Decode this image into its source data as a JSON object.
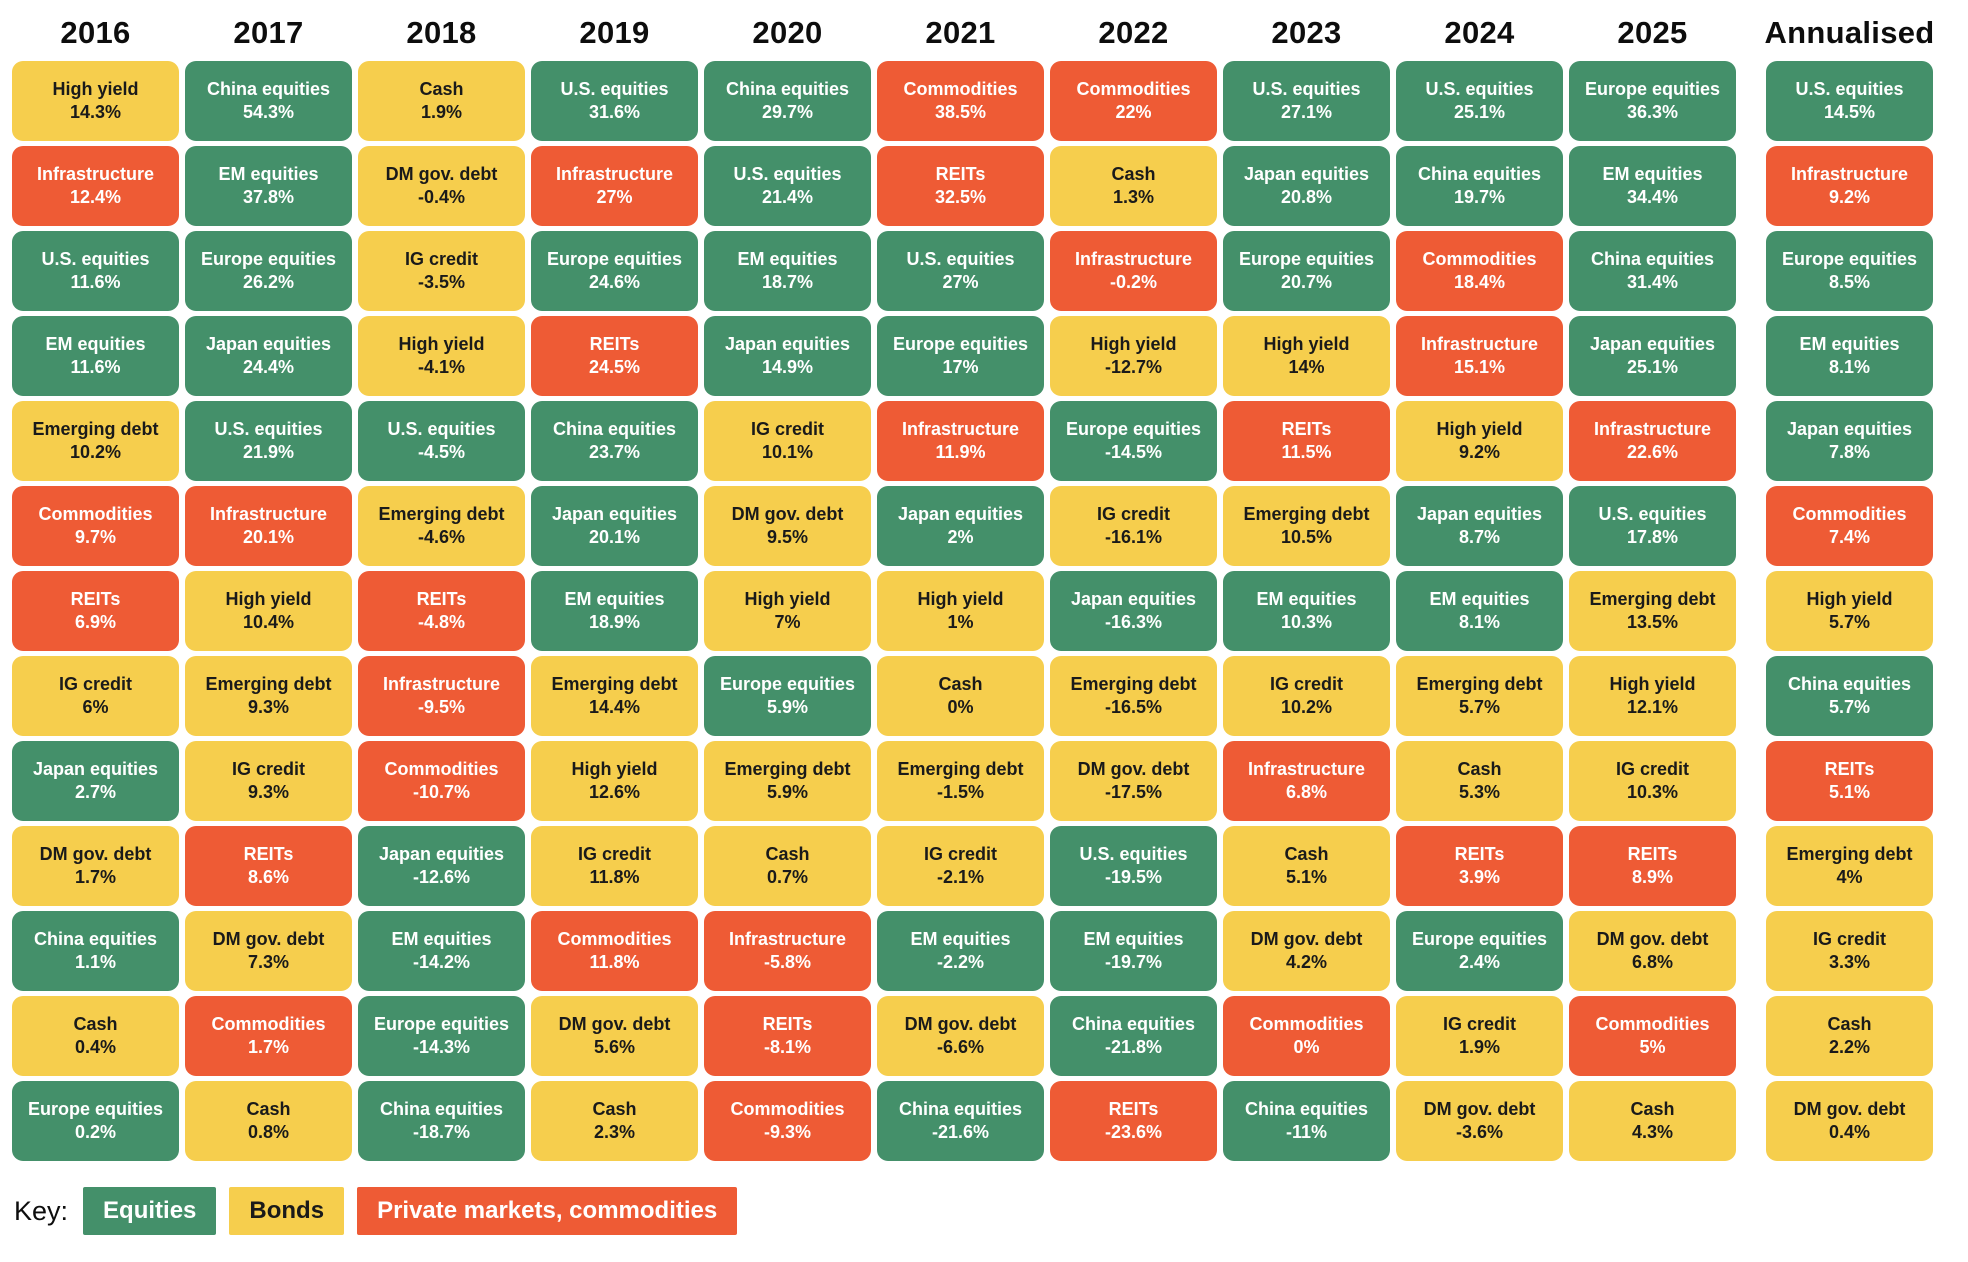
{
  "colors": {
    "equities": {
      "bg": "#44906A",
      "text": "#FFFFFF"
    },
    "bonds": {
      "bg": "#F6CE4D",
      "text": "#1A1A1A"
    },
    "private": {
      "bg": "#EE5B35",
      "text": "#FFFFFF"
    }
  },
  "chart_data": {
    "type": "table",
    "legend": {
      "label": "Key:",
      "items": [
        {
          "label": "Equities",
          "type": "equities"
        },
        {
          "label": "Bonds",
          "type": "bonds"
        },
        {
          "label": "Private markets, commodities",
          "type": "private"
        }
      ]
    },
    "columns": [
      {
        "header": "2016",
        "cells": [
          {
            "name": "High yield",
            "value": "14.3%",
            "type": "bonds"
          },
          {
            "name": "Infrastructure",
            "value": "12.4%",
            "type": "private"
          },
          {
            "name": "U.S. equities",
            "value": "11.6%",
            "type": "equities"
          },
          {
            "name": "EM equities",
            "value": "11.6%",
            "type": "equities"
          },
          {
            "name": "Emerging debt",
            "value": "10.2%",
            "type": "bonds"
          },
          {
            "name": "Commodities",
            "value": "9.7%",
            "type": "private"
          },
          {
            "name": "REITs",
            "value": "6.9%",
            "type": "private"
          },
          {
            "name": "IG credit",
            "value": "6%",
            "type": "bonds"
          },
          {
            "name": "Japan equities",
            "value": "2.7%",
            "type": "equities"
          },
          {
            "name": "DM gov. debt",
            "value": "1.7%",
            "type": "bonds"
          },
          {
            "name": "China equities",
            "value": "1.1%",
            "type": "equities"
          },
          {
            "name": "Cash",
            "value": "0.4%",
            "type": "bonds"
          },
          {
            "name": "Europe equities",
            "value": "0.2%",
            "type": "equities"
          }
        ]
      },
      {
        "header": "2017",
        "cells": [
          {
            "name": "China equities",
            "value": "54.3%",
            "type": "equities"
          },
          {
            "name": "EM equities",
            "value": "37.8%",
            "type": "equities"
          },
          {
            "name": "Europe equities",
            "value": "26.2%",
            "type": "equities"
          },
          {
            "name": "Japan equities",
            "value": "24.4%",
            "type": "equities"
          },
          {
            "name": "U.S. equities",
            "value": "21.9%",
            "type": "equities"
          },
          {
            "name": "Infrastructure",
            "value": "20.1%",
            "type": "private"
          },
          {
            "name": "High yield",
            "value": "10.4%",
            "type": "bonds"
          },
          {
            "name": "Emerging debt",
            "value": "9.3%",
            "type": "bonds"
          },
          {
            "name": "IG credit",
            "value": "9.3%",
            "type": "bonds"
          },
          {
            "name": "REITs",
            "value": "8.6%",
            "type": "private"
          },
          {
            "name": "DM gov. debt",
            "value": "7.3%",
            "type": "bonds"
          },
          {
            "name": "Commodities",
            "value": "1.7%",
            "type": "private"
          },
          {
            "name": "Cash",
            "value": "0.8%",
            "type": "bonds"
          }
        ]
      },
      {
        "header": "2018",
        "cells": [
          {
            "name": "Cash",
            "value": "1.9%",
            "type": "bonds"
          },
          {
            "name": "DM gov. debt",
            "value": "-0.4%",
            "type": "bonds"
          },
          {
            "name": "IG credit",
            "value": "-3.5%",
            "type": "bonds"
          },
          {
            "name": "High yield",
            "value": "-4.1%",
            "type": "bonds"
          },
          {
            "name": "U.S. equities",
            "value": "-4.5%",
            "type": "equities"
          },
          {
            "name": "Emerging debt",
            "value": "-4.6%",
            "type": "bonds"
          },
          {
            "name": "REITs",
            "value": "-4.8%",
            "type": "private"
          },
          {
            "name": "Infrastructure",
            "value": "-9.5%",
            "type": "private"
          },
          {
            "name": "Commodities",
            "value": "-10.7%",
            "type": "private"
          },
          {
            "name": "Japan equities",
            "value": "-12.6%",
            "type": "equities"
          },
          {
            "name": "EM equities",
            "value": "-14.2%",
            "type": "equities"
          },
          {
            "name": "Europe equities",
            "value": "-14.3%",
            "type": "equities"
          },
          {
            "name": "China equities",
            "value": "-18.7%",
            "type": "equities"
          }
        ]
      },
      {
        "header": "2019",
        "cells": [
          {
            "name": "U.S. equities",
            "value": "31.6%",
            "type": "equities"
          },
          {
            "name": "Infrastructure",
            "value": "27%",
            "type": "private"
          },
          {
            "name": "Europe equities",
            "value": "24.6%",
            "type": "equities"
          },
          {
            "name": "REITs",
            "value": "24.5%",
            "type": "private"
          },
          {
            "name": "China equities",
            "value": "23.7%",
            "type": "equities"
          },
          {
            "name": "Japan equities",
            "value": "20.1%",
            "type": "equities"
          },
          {
            "name": "EM equities",
            "value": "18.9%",
            "type": "equities"
          },
          {
            "name": "Emerging debt",
            "value": "14.4%",
            "type": "bonds"
          },
          {
            "name": "High yield",
            "value": "12.6%",
            "type": "bonds"
          },
          {
            "name": "IG credit",
            "value": "11.8%",
            "type": "bonds"
          },
          {
            "name": "Commodities",
            "value": "11.8%",
            "type": "private"
          },
          {
            "name": "DM gov. debt",
            "value": "5.6%",
            "type": "bonds"
          },
          {
            "name": "Cash",
            "value": "2.3%",
            "type": "bonds"
          }
        ]
      },
      {
        "header": "2020",
        "cells": [
          {
            "name": "China equities",
            "value": "29.7%",
            "type": "equities"
          },
          {
            "name": "U.S. equities",
            "value": "21.4%",
            "type": "equities"
          },
          {
            "name": "EM equities",
            "value": "18.7%",
            "type": "equities"
          },
          {
            "name": "Japan equities",
            "value": "14.9%",
            "type": "equities"
          },
          {
            "name": "IG credit",
            "value": "10.1%",
            "type": "bonds"
          },
          {
            "name": "DM gov. debt",
            "value": "9.5%",
            "type": "bonds"
          },
          {
            "name": "High yield",
            "value": "7%",
            "type": "bonds"
          },
          {
            "name": "Europe equities",
            "value": "5.9%",
            "type": "equities"
          },
          {
            "name": "Emerging debt",
            "value": "5.9%",
            "type": "bonds"
          },
          {
            "name": "Cash",
            "value": "0.7%",
            "type": "bonds"
          },
          {
            "name": "Infrastructure",
            "value": "-5.8%",
            "type": "private"
          },
          {
            "name": "REITs",
            "value": "-8.1%",
            "type": "private"
          },
          {
            "name": "Commodities",
            "value": "-9.3%",
            "type": "private"
          }
        ]
      },
      {
        "header": "2021",
        "cells": [
          {
            "name": "Commodities",
            "value": "38.5%",
            "type": "private"
          },
          {
            "name": "REITs",
            "value": "32.5%",
            "type": "private"
          },
          {
            "name": "U.S. equities",
            "value": "27%",
            "type": "equities"
          },
          {
            "name": "Europe equities",
            "value": "17%",
            "type": "equities"
          },
          {
            "name": "Infrastructure",
            "value": "11.9%",
            "type": "private"
          },
          {
            "name": "Japan equities",
            "value": "2%",
            "type": "equities"
          },
          {
            "name": "High yield",
            "value": "1%",
            "type": "bonds"
          },
          {
            "name": "Cash",
            "value": "0%",
            "type": "bonds"
          },
          {
            "name": "Emerging debt",
            "value": "-1.5%",
            "type": "bonds"
          },
          {
            "name": "IG credit",
            "value": "-2.1%",
            "type": "bonds"
          },
          {
            "name": "EM equities",
            "value": "-2.2%",
            "type": "equities"
          },
          {
            "name": "DM gov. debt",
            "value": "-6.6%",
            "type": "bonds"
          },
          {
            "name": "China equities",
            "value": "-21.6%",
            "type": "equities"
          }
        ]
      },
      {
        "header": "2022",
        "cells": [
          {
            "name": "Commodities",
            "value": "22%",
            "type": "private"
          },
          {
            "name": "Cash",
            "value": "1.3%",
            "type": "bonds"
          },
          {
            "name": "Infrastructure",
            "value": "-0.2%",
            "type": "private"
          },
          {
            "name": "High yield",
            "value": "-12.7%",
            "type": "bonds"
          },
          {
            "name": "Europe equities",
            "value": "-14.5%",
            "type": "equities"
          },
          {
            "name": "IG credit",
            "value": "-16.1%",
            "type": "bonds"
          },
          {
            "name": "Japan equities",
            "value": "-16.3%",
            "type": "equities"
          },
          {
            "name": "Emerging debt",
            "value": "-16.5%",
            "type": "bonds"
          },
          {
            "name": "DM gov. debt",
            "value": "-17.5%",
            "type": "bonds"
          },
          {
            "name": "U.S. equities",
            "value": "-19.5%",
            "type": "equities"
          },
          {
            "name": "EM equities",
            "value": "-19.7%",
            "type": "equities"
          },
          {
            "name": "China equities",
            "value": "-21.8%",
            "type": "equities"
          },
          {
            "name": "REITs",
            "value": "-23.6%",
            "type": "private"
          }
        ]
      },
      {
        "header": "2023",
        "cells": [
          {
            "name": "U.S. equities",
            "value": "27.1%",
            "type": "equities"
          },
          {
            "name": "Japan equities",
            "value": "20.8%",
            "type": "equities"
          },
          {
            "name": "Europe equities",
            "value": "20.7%",
            "type": "equities"
          },
          {
            "name": "High yield",
            "value": "14%",
            "type": "bonds"
          },
          {
            "name": "REITs",
            "value": "11.5%",
            "type": "private"
          },
          {
            "name": "Emerging debt",
            "value": "10.5%",
            "type": "bonds"
          },
          {
            "name": "EM equities",
            "value": "10.3%",
            "type": "equities"
          },
          {
            "name": "IG credit",
            "value": "10.2%",
            "type": "bonds"
          },
          {
            "name": "Infrastructure",
            "value": "6.8%",
            "type": "private"
          },
          {
            "name": "Cash",
            "value": "5.1%",
            "type": "bonds"
          },
          {
            "name": "DM gov. debt",
            "value": "4.2%",
            "type": "bonds"
          },
          {
            "name": "Commodities",
            "value": "0%",
            "type": "private"
          },
          {
            "name": "China equities",
            "value": "-11%",
            "type": "equities"
          }
        ]
      },
      {
        "header": "2024",
        "cells": [
          {
            "name": "U.S. equities",
            "value": "25.1%",
            "type": "equities"
          },
          {
            "name": "China equities",
            "value": "19.7%",
            "type": "equities"
          },
          {
            "name": "Commodities",
            "value": "18.4%",
            "type": "private"
          },
          {
            "name": "Infrastructure",
            "value": "15.1%",
            "type": "private"
          },
          {
            "name": "High yield",
            "value": "9.2%",
            "type": "bonds"
          },
          {
            "name": "Japan equities",
            "value": "8.7%",
            "type": "equities"
          },
          {
            "name": "EM equities",
            "value": "8.1%",
            "type": "equities"
          },
          {
            "name": "Emerging debt",
            "value": "5.7%",
            "type": "bonds"
          },
          {
            "name": "Cash",
            "value": "5.3%",
            "type": "bonds"
          },
          {
            "name": "REITs",
            "value": "3.9%",
            "type": "private"
          },
          {
            "name": "Europe equities",
            "value": "2.4%",
            "type": "equities"
          },
          {
            "name": "IG credit",
            "value": "1.9%",
            "type": "bonds"
          },
          {
            "name": "DM gov. debt",
            "value": "-3.6%",
            "type": "bonds"
          }
        ]
      },
      {
        "header": "2025",
        "cells": [
          {
            "name": "Europe equities",
            "value": "36.3%",
            "type": "equities"
          },
          {
            "name": "EM equities",
            "value": "34.4%",
            "type": "equities"
          },
          {
            "name": "China equities",
            "value": "31.4%",
            "type": "equities"
          },
          {
            "name": "Japan equities",
            "value": "25.1%",
            "type": "equities"
          },
          {
            "name": "Infrastructure",
            "value": "22.6%",
            "type": "private"
          },
          {
            "name": "U.S. equities",
            "value": "17.8%",
            "type": "equities"
          },
          {
            "name": "Emerging debt",
            "value": "13.5%",
            "type": "bonds"
          },
          {
            "name": "High yield",
            "value": "12.1%",
            "type": "bonds"
          },
          {
            "name": "IG credit",
            "value": "10.3%",
            "type": "bonds"
          },
          {
            "name": "REITs",
            "value": "8.9%",
            "type": "private"
          },
          {
            "name": "DM gov. debt",
            "value": "6.8%",
            "type": "bonds"
          },
          {
            "name": "Commodities",
            "value": "5%",
            "type": "private"
          },
          {
            "name": "Cash",
            "value": "4.3%",
            "type": "bonds"
          }
        ]
      },
      {
        "header": "Annualised",
        "cells": [
          {
            "name": "U.S. equities",
            "value": "14.5%",
            "type": "equities"
          },
          {
            "name": "Infrastructure",
            "value": "9.2%",
            "type": "private"
          },
          {
            "name": "Europe equities",
            "value": "8.5%",
            "type": "equities"
          },
          {
            "name": "EM equities",
            "value": "8.1%",
            "type": "equities"
          },
          {
            "name": "Japan equities",
            "value": "7.8%",
            "type": "equities"
          },
          {
            "name": "Commodities",
            "value": "7.4%",
            "type": "private"
          },
          {
            "name": "High yield",
            "value": "5.7%",
            "type": "bonds"
          },
          {
            "name": "China equities",
            "value": "5.7%",
            "type": "equities"
          },
          {
            "name": "REITs",
            "value": "5.1%",
            "type": "private"
          },
          {
            "name": "Emerging debt",
            "value": "4%",
            "type": "bonds"
          },
          {
            "name": "IG credit",
            "value": "3.3%",
            "type": "bonds"
          },
          {
            "name": "Cash",
            "value": "2.2%",
            "type": "bonds"
          },
          {
            "name": "DM gov. debt",
            "value": "0.4%",
            "type": "bonds"
          }
        ]
      }
    ]
  }
}
